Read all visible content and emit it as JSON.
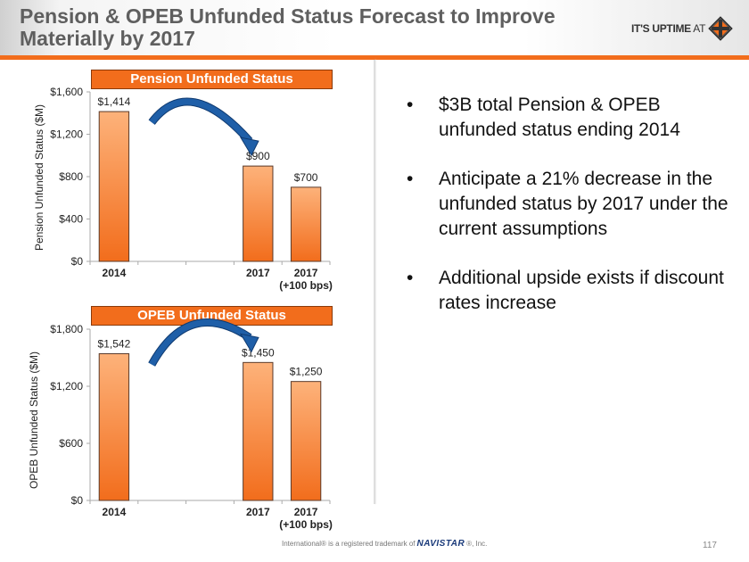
{
  "header": {
    "title_line1": "Pension & OPEB Unfunded Status Forecast to Improve",
    "title_line2": "Materially by 2017",
    "brand_bold": "IT'S UPTIME",
    "brand_thin": " AT",
    "brand_logo": "international-diamond-logo"
  },
  "colors": {
    "accent": "#f26d1c",
    "bar_top": "#fdb27a",
    "bar_bottom": "#f26d1c",
    "arrow": "#1f5fa8",
    "title": "#5f5f5f"
  },
  "chart_data": [
    {
      "type": "bar",
      "title": "Pension Unfunded Status",
      "ylabel": "Pension Unfunded Status ($M)",
      "xlabel": "",
      "categories": [
        "2014",
        "",
        "",
        "2017",
        "2017\n(+100 bps)"
      ],
      "category_labels": [
        [
          "2014"
        ],
        [],
        [],
        [
          "2017"
        ],
        [
          "2017",
          "(+100 bps)"
        ]
      ],
      "values": [
        1414,
        null,
        null,
        900,
        700
      ],
      "data_labels": [
        "$1,414",
        "",
        "",
        "$900",
        "$700"
      ],
      "ylim": [
        0,
        1600
      ],
      "yticks": [
        0,
        400,
        800,
        1200,
        1600
      ],
      "ytick_labels": [
        "$0",
        "$400",
        "$800",
        "$1,200",
        "$1,600"
      ],
      "grid": false,
      "annotation": "curved-arrow-from-2014-to-2017"
    },
    {
      "type": "bar",
      "title": "OPEB Unfunded Status",
      "ylabel": "OPEB Unfunded Status ($M)",
      "xlabel": "",
      "categories": [
        "2014",
        "",
        "",
        "2017",
        "2017\n(+100 bps)"
      ],
      "category_labels": [
        [
          "2014"
        ],
        [],
        [],
        [
          "2017"
        ],
        [
          "2017",
          "(+100 bps)"
        ]
      ],
      "values": [
        1542,
        null,
        null,
        1450,
        1250
      ],
      "data_labels": [
        "$1,542",
        "",
        "",
        "$1,450",
        "$1,250"
      ],
      "ylim": [
        0,
        1800
      ],
      "yticks": [
        0,
        600,
        1200,
        1800
      ],
      "ytick_labels": [
        "$0",
        "$600",
        "$1,200",
        "$1,800"
      ],
      "grid": false,
      "annotation": "curved-arrow-from-2014-to-2017"
    }
  ],
  "bullets": [
    {
      "bullet": "•",
      "text": "$3B total Pension & OPEB unfunded status ending 2014"
    },
    {
      "bullet": "•",
      "text": "Anticipate a 21% decrease in the unfunded status by 2017 under the current assumptions"
    },
    {
      "bullet": "•",
      "text": "Additional upside exists if discount rates increase"
    }
  ],
  "footer": {
    "prefix": "International® is a registered trademark of",
    "brand": "NAVISTAR",
    "suffix": "®, Inc.",
    "page_number": "117"
  }
}
